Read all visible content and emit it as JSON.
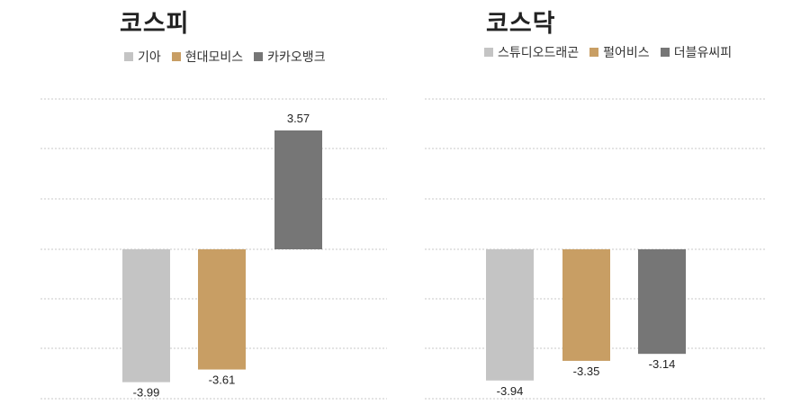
{
  "chart_data": [
    {
      "type": "bar",
      "title": "코스피",
      "categories": [
        "기아",
        "현대모비스",
        "카카오뱅크"
      ],
      "values": [
        -3.99,
        -3.61,
        3.57
      ],
      "colors": [
        "#c4c4c4",
        "#c89e64",
        "#767676"
      ],
      "legend": [
        "기아",
        "현대모비스",
        "카카오뱅크"
      ],
      "legend_position": "top-left",
      "data_labels": [
        "-3.99",
        "-3.61",
        "3.57"
      ],
      "ylim": [
        -4.5,
        4.5
      ],
      "grid": true,
      "xlabel": "",
      "ylabel": ""
    },
    {
      "type": "bar",
      "title": "코스닥",
      "categories": [
        "스튜디오드래곤",
        "펄어비스",
        "더블유씨피"
      ],
      "values": [
        -3.94,
        -3.35,
        -3.14
      ],
      "colors": [
        "#c4c4c4",
        "#c89e64",
        "#767676"
      ],
      "legend": [
        "스튜디오드래곤",
        "펄어비스",
        "더블유씨피"
      ],
      "legend_position": "top-left",
      "data_labels": [
        "-3.94",
        "-3.35",
        "-3.14"
      ],
      "ylim": [
        -4.5,
        4.5
      ],
      "grid": true,
      "xlabel": "",
      "ylabel": ""
    }
  ]
}
